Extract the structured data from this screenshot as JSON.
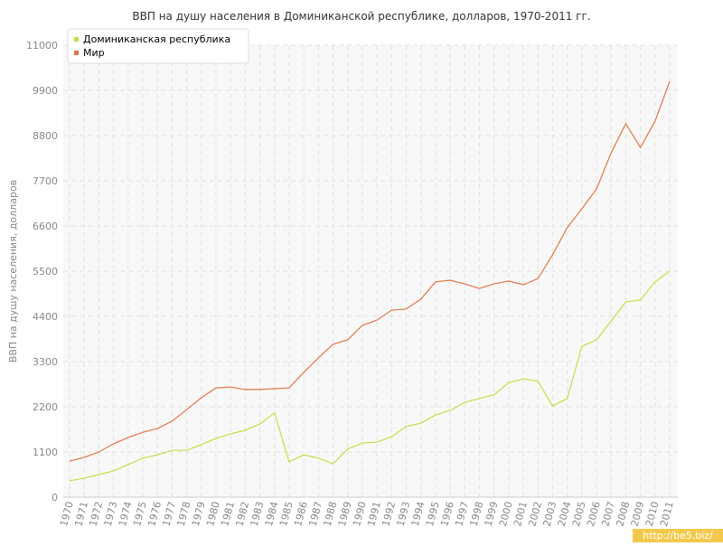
{
  "chart_data": {
    "type": "line",
    "title": "ВВП на душу населения в Доминиканской республике, долларов, 1970-2011 гг.",
    "y_label": "ВВП на душу населения, долларов",
    "watermark": "http://be5.biz/",
    "categories": [
      "1970",
      "1971",
      "1972",
      "1973",
      "1974",
      "1975",
      "1976",
      "1977",
      "1978",
      "1979",
      "1980",
      "1981",
      "1982",
      "1983",
      "1984",
      "1985",
      "1986",
      "1987",
      "1988",
      "1989",
      "1990",
      "1991",
      "1992",
      "1993",
      "1994",
      "1995",
      "1996",
      "1997",
      "1998",
      "1999",
      "2000",
      "2001",
      "2002",
      "2003",
      "2004",
      "2005",
      "2006",
      "2007",
      "2008",
      "2009",
      "2010",
      "2011"
    ],
    "series": [
      {
        "name": "Доминиканская республика",
        "color": "#c5dd4a",
        "values": [
          400,
          460,
          550,
          640,
          790,
          950,
          1030,
          1140,
          1140,
          1280,
          1430,
          1540,
          1630,
          1780,
          2050,
          860,
          1030,
          950,
          810,
          1170,
          1320,
          1340,
          1470,
          1720,
          1800,
          2000,
          2110,
          2310,
          2400,
          2490,
          2790,
          2880,
          2820,
          2220,
          2400,
          3670,
          3830,
          4290,
          4750,
          4800,
          5240,
          5500
        ]
      },
      {
        "name": "Мир",
        "color": "#e0774a",
        "values": [
          880,
          970,
          1100,
          1300,
          1450,
          1580,
          1670,
          1850,
          2130,
          2420,
          2660,
          2680,
          2620,
          2620,
          2640,
          2660,
          3040,
          3390,
          3720,
          3830,
          4180,
          4310,
          4550,
          4580,
          4820,
          5240,
          5280,
          5190,
          5080,
          5190,
          5260,
          5170,
          5320,
          5900,
          6560,
          7020,
          7500,
          8380,
          9090,
          8510,
          9150,
          10120
        ]
      }
    ],
    "ylim": [
      0,
      11000
    ],
    "yticks": [
      0,
      1100,
      2200,
      3300,
      4400,
      5500,
      6600,
      7700,
      8800,
      9900,
      11000
    ],
    "grid": true,
    "legend": "top-left"
  }
}
